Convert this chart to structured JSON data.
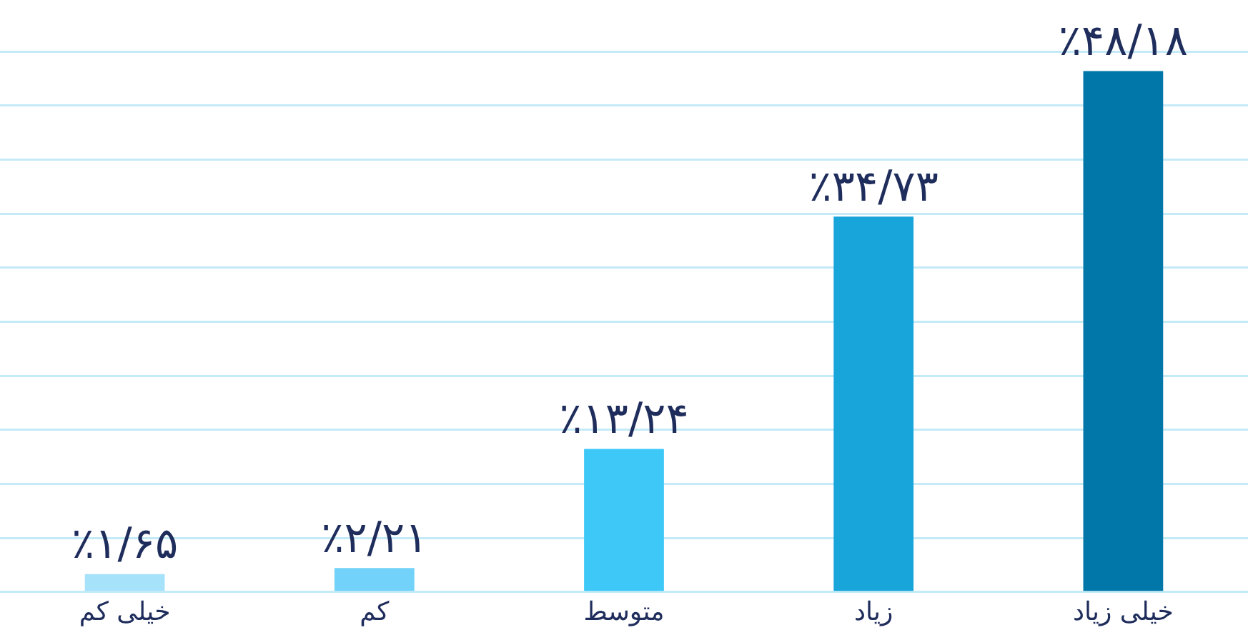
{
  "chart_data": {
    "type": "bar",
    "categories": [
      "خیلی کم",
      "کم",
      "متوسط",
      "زیاد",
      "خیلی زیاد"
    ],
    "values": [
      1.65,
      2.21,
      13.24,
      34.73,
      48.18
    ],
    "colors": [
      "#a6e2fa",
      "#72d2f9",
      "#3dc8f8",
      "#17a5da",
      "#0077a8"
    ],
    "value_labels": [
      "٪۱/۶۵",
      "٪۲/۲۱",
      "٪۱۳/۲۴",
      "٪۳۴/۷۳",
      "٪۴۸/۱۸"
    ],
    "ylim": [
      0,
      50
    ],
    "yticks": [
      {
        "value": 0,
        "label": null
      },
      {
        "value": 5,
        "label": null
      },
      {
        "value": 10,
        "label": null
      },
      {
        "value": 15,
        "label": null
      },
      {
        "value": 20,
        "label": null
      },
      {
        "value": 25,
        "label": null
      },
      {
        "value": 30,
        "label": null
      },
      {
        "value": 35,
        "label": null
      },
      {
        "value": 40,
        "label": null
      },
      {
        "value": 45,
        "label": null
      },
      {
        "value": 50,
        "label": null
      }
    ],
    "grid": "y",
    "tick_labels": "x",
    "legend": false
  }
}
